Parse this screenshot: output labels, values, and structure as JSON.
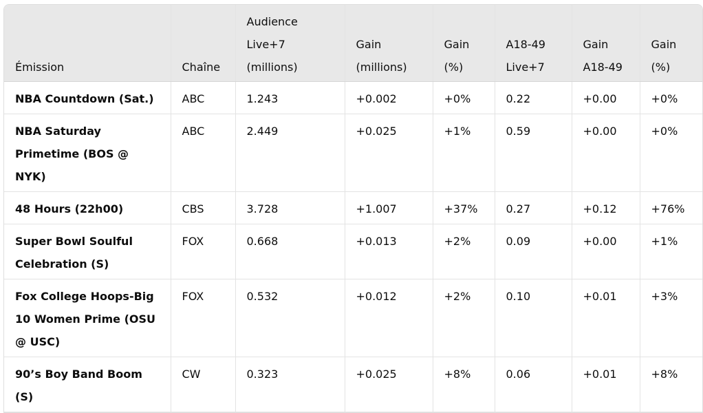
{
  "table": {
    "headers": [
      "Émission",
      "Chaîne",
      "Audience Live+7 (millions)",
      "Gain (millions)",
      "Gain (%)",
      "A18-49 Live+7",
      "Gain A18-49",
      "Gain (%)"
    ],
    "rows": [
      [
        "NBA Countdown (Sat.)",
        "ABC",
        "1.243",
        "+0.002",
        "+0%",
        "0.22",
        "+0.00",
        "+0%"
      ],
      [
        "NBA Saturday Primetime (BOS @ NYK)",
        "ABC",
        "2.449",
        "+0.025",
        "+1%",
        "0.59",
        "+0.00",
        "+0%"
      ],
      [
        "48 Hours (22h00)",
        "CBS",
        "3.728",
        "+1.007",
        "+37%",
        "0.27",
        "+0.12",
        "+76%"
      ],
      [
        "Super Bowl Soulful Celebration (S)",
        "FOX",
        "0.668",
        "+0.013",
        "+2%",
        "0.09",
        "+0.00",
        "+1%"
      ],
      [
        "Fox College Hoops-Big 10 Women Prime (OSU @ USC)",
        "FOX",
        "0.532",
        "+0.012",
        "+2%",
        "0.10",
        "+0.01",
        "+3%"
      ],
      [
        "90’s Boy Band Boom (S)",
        "CW",
        "0.323",
        "+0.025",
        "+8%",
        "0.06",
        "+0.01",
        "+8%"
      ]
    ]
  }
}
